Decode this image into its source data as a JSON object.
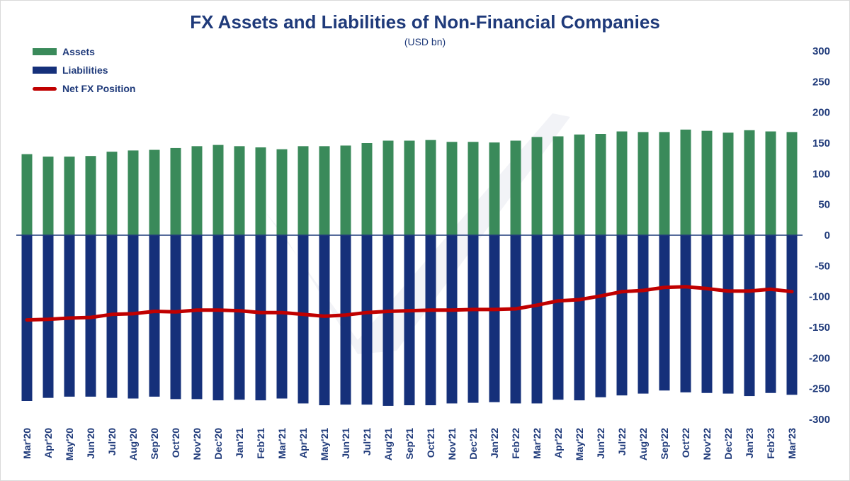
{
  "chart_data": {
    "type": "bar",
    "title": "FX Assets and Liabilities of Non-Financial Companies",
    "subtitle": "(USD bn)",
    "categories": [
      "Mar'20",
      "Apr'20",
      "May'20",
      "Jun'20",
      "Jul'20",
      "Aug'20",
      "Sep'20",
      "Oct'20",
      "Nov'20",
      "Dec'20",
      "Jan'21",
      "Feb'21",
      "Mar'21",
      "Apr'21",
      "May'21",
      "Jun'21",
      "Jul'21",
      "Aug'21",
      "Sep'21",
      "Oct'21",
      "Nov'21",
      "Dec'21",
      "Jan'22",
      "Feb'22",
      "Mar'22",
      "Apr'22",
      "May'22",
      "Jun'22",
      "Jul'22",
      "Aug'22",
      "Sep'22",
      "Oct'22",
      "Nov'22",
      "Dec'22",
      "Jan'23",
      "Feb'23",
      "Mar'23"
    ],
    "series": [
      {
        "name": "Assets",
        "kind": "bar",
        "color": "#3a8a5a",
        "values": [
          132,
          128,
          128,
          129,
          136,
          138,
          139,
          142,
          145,
          147,
          145,
          143,
          140,
          145,
          145,
          146,
          150,
          154,
          154,
          155,
          152,
          152,
          151,
          154,
          160,
          161,
          164,
          165,
          169,
          168,
          168,
          172,
          170,
          167,
          171,
          169,
          168
        ]
      },
      {
        "name": "Liabilities",
        "kind": "bar",
        "color": "#15307a",
        "values": [
          -270,
          -265,
          -263,
          -263,
          -265,
          -266,
          -263,
          -267,
          -267,
          -269,
          -268,
          -269,
          -266,
          -274,
          -277,
          -276,
          -276,
          -278,
          -277,
          -277,
          -274,
          -273,
          -272,
          -274,
          -274,
          -268,
          -269,
          -264,
          -261,
          -258,
          -253,
          -256,
          -257,
          -258,
          -262,
          -257,
          -260
        ]
      },
      {
        "name": "Net FX Position",
        "kind": "line",
        "color": "#c00000",
        "values": [
          -138,
          -137,
          -135,
          -134,
          -129,
          -128,
          -124,
          -125,
          -122,
          -122,
          -123,
          -126,
          -126,
          -129,
          -132,
          -130,
          -126,
          -124,
          -123,
          -122,
          -122,
          -121,
          -121,
          -120,
          -114,
          -107,
          -105,
          -99,
          -92,
          -90,
          -85,
          -84,
          -87,
          -91,
          -91,
          -88,
          -92
        ]
      }
    ],
    "y_ticks": [
      "300",
      "250",
      "200",
      "150",
      "100",
      "50",
      "0",
      "-50",
      "-100",
      "-150",
      "-200",
      "-250",
      "-300"
    ],
    "ylim": [
      -300,
      300
    ],
    "legend_position": "top-left",
    "grid": false
  }
}
